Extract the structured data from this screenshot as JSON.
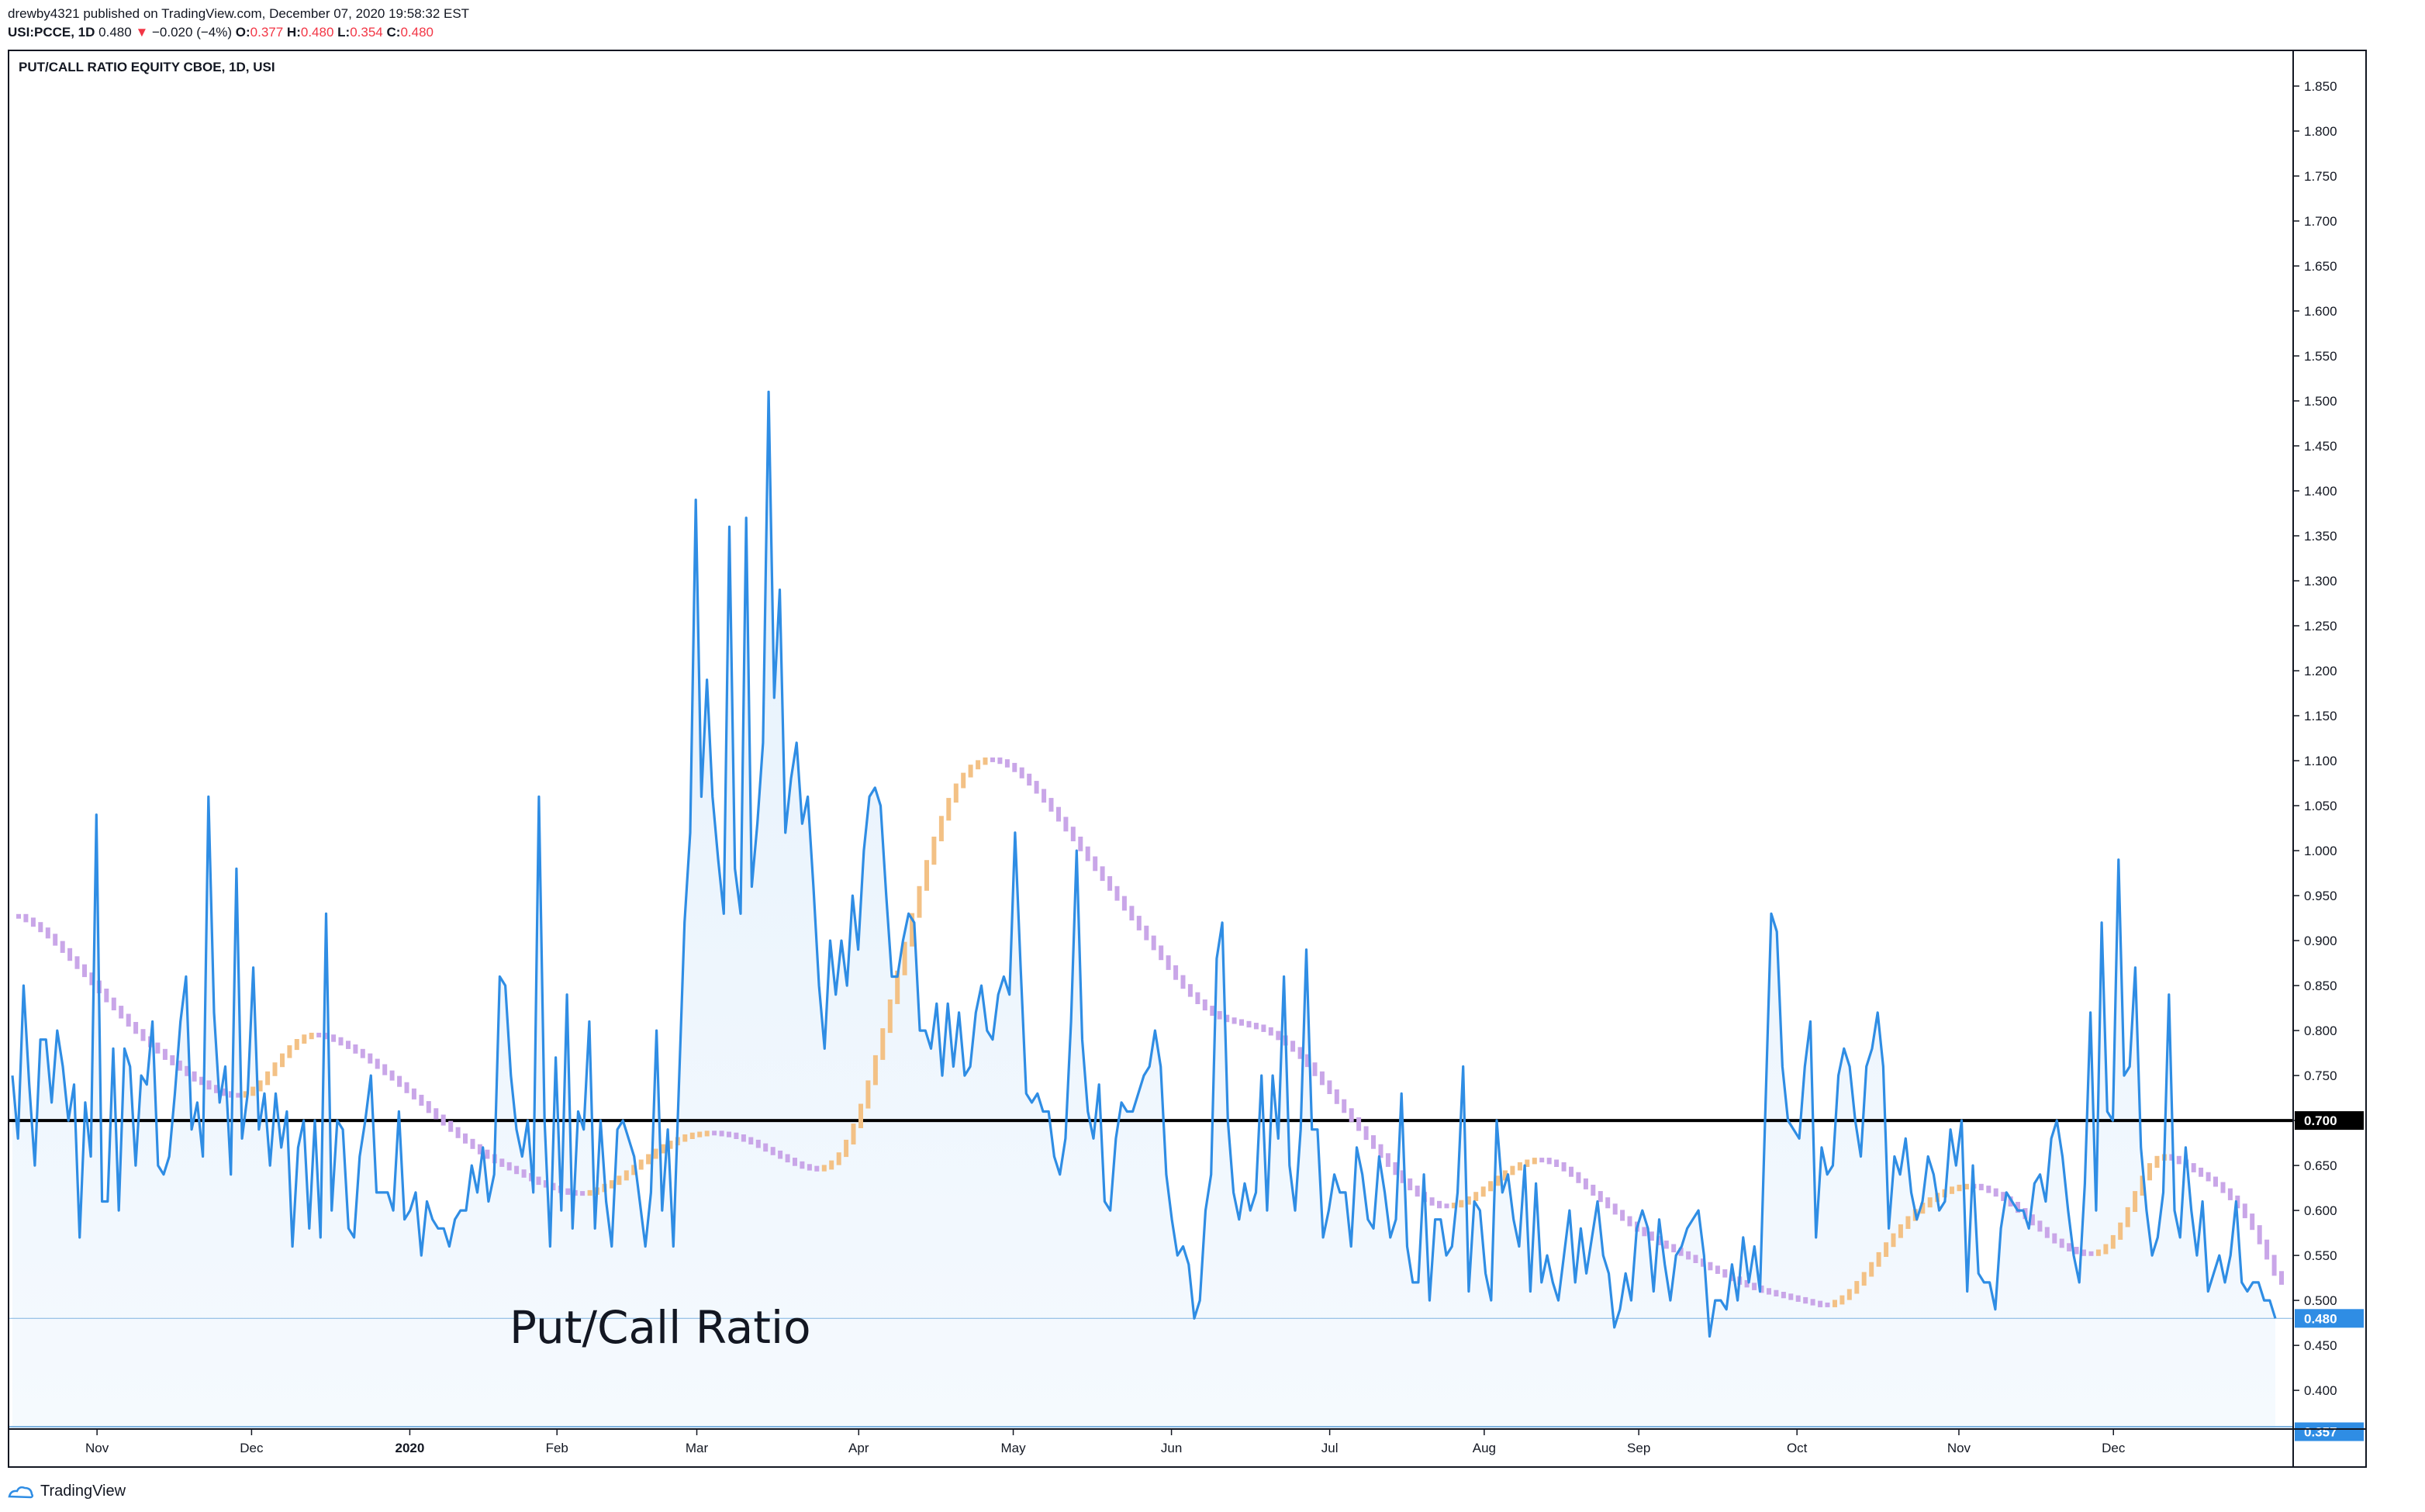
{
  "header": {
    "publisher_line": "drewby4321 published on TradingView.com, December 07, 2020 19:58:32 EST",
    "symbol": "USI:PCCE, 1D",
    "last": "0.480",
    "change_arrow": "▼",
    "change": "−0.020 (−4%)",
    "o_label": "O:",
    "o_value": "0.377",
    "h_label": "H:",
    "h_value": "0.480",
    "l_label": "L:",
    "l_value": "0.354",
    "c_label": "C:",
    "c_value": "0.480"
  },
  "pane": {
    "study_title": "PUT/CALL RATIO EQUITY CBOE, 1D, USI",
    "annotation": "Put/Call Ratio"
  },
  "footer": {
    "brand": "TradingView",
    "brand_icon": "tradingview-cloud-icon"
  },
  "colors": {
    "line": "#2f8de4",
    "area": "#e3f0fc",
    "ma_down": "#c9a6e8",
    "ma_up": "#f3c185",
    "hline": "#000000",
    "last_label_bg": "#2f8de4",
    "low_line": "#7fb3e0"
  },
  "chart_data": {
    "type": "line",
    "title": "PUT/CALL RATIO EQUITY CBOE, 1D, USI",
    "ylim": [
      0.357,
      1.875
    ],
    "y_ticks": [
      0.4,
      0.45,
      0.5,
      0.55,
      0.6,
      0.65,
      0.7,
      0.75,
      0.8,
      0.85,
      0.9,
      0.95,
      1.0,
      1.05,
      1.1,
      1.15,
      1.2,
      1.25,
      1.3,
      1.35,
      1.4,
      1.45,
      1.5,
      1.55,
      1.6,
      1.65,
      1.7,
      1.75,
      1.8,
      1.85
    ],
    "y_tick_labels": [
      "0.400",
      "0.450",
      "0.500",
      "0.550",
      "0.600",
      "0.650",
      "0.700",
      "0.750",
      "0.800",
      "0.850",
      "0.900",
      "0.950",
      "1.000",
      "1.050",
      "1.100",
      "1.150",
      "1.200",
      "1.250",
      "1.300",
      "1.350",
      "1.400",
      "1.450",
      "1.500",
      "1.550",
      "1.600",
      "1.650",
      "1.700",
      "1.750",
      "1.800",
      "1.850"
    ],
    "x_ticks": [
      "Nov",
      "Dec",
      "2020",
      "Feb",
      "Mar",
      "Apr",
      "May",
      "Jun",
      "Jul",
      "Aug",
      "Sep",
      "Oct",
      "Nov",
      "Dec"
    ],
    "x_tick_positions": [
      23,
      65,
      108,
      148,
      186,
      230,
      272,
      315,
      358,
      400,
      442,
      485,
      529,
      571
    ],
    "x_range": [
      0,
      615
    ],
    "horizontal_line": {
      "value": 0.7,
      "label": "0.700"
    },
    "last_value_label": {
      "value": 0.48,
      "label": "0.480"
    },
    "low_marker": {
      "value": 0.357,
      "label": "0.357"
    },
    "grid": false,
    "legend": "none",
    "series": [
      {
        "values": [
          0.75,
          0.68,
          0.85,
          0.74,
          0.65,
          0.79,
          0.79,
          0.72,
          0.8,
          0.76,
          0.7,
          0.74,
          0.57,
          0.72,
          0.66,
          1.04,
          0.61,
          0.61,
          0.78,
          0.6,
          0.78,
          0.76,
          0.65,
          0.75,
          0.74,
          0.81,
          0.65,
          0.64,
          0.66,
          0.73,
          0.81,
          0.86,
          0.69,
          0.72,
          0.66,
          1.06,
          0.82,
          0.72,
          0.76,
          0.64,
          0.98,
          0.68,
          0.73,
          0.87,
          0.69,
          0.73,
          0.65,
          0.73,
          0.67,
          0.71,
          0.56,
          0.67,
          0.7,
          0.58,
          0.7,
          0.57,
          0.93,
          0.6,
          0.7,
          0.69,
          0.58,
          0.57,
          0.66,
          0.7,
          0.75,
          0.62,
          0.62,
          0.62,
          0.6,
          0.71,
          0.59,
          0.6,
          0.62,
          0.55,
          0.61,
          0.59,
          0.58,
          0.58,
          0.56,
          0.59,
          0.6,
          0.6,
          0.65,
          0.62,
          0.67,
          0.61,
          0.64,
          0.86,
          0.85,
          0.75,
          0.69,
          0.66,
          0.7,
          0.62,
          1.06,
          0.7,
          0.56,
          0.77,
          0.6,
          0.84,
          0.58,
          0.71,
          0.69,
          0.81,
          0.58,
          0.7,
          0.61,
          0.56,
          0.69,
          0.7,
          0.68,
          0.66,
          0.61,
          0.56,
          0.62,
          0.8,
          0.6,
          0.69,
          0.56,
          0.74,
          0.92,
          1.02,
          1.39,
          1.06,
          1.19,
          1.06,
          0.99,
          0.93,
          1.36,
          0.98,
          0.93,
          1.37,
          0.96,
          1.03,
          1.12,
          1.51,
          1.17,
          1.29,
          1.02,
          1.08,
          1.12,
          1.03,
          1.06,
          0.96,
          0.85,
          0.78,
          0.9,
          0.84,
          0.9,
          0.85,
          0.95,
          0.89,
          1.0,
          1.06,
          1.07,
          1.05,
          0.95,
          0.86,
          0.86,
          0.9,
          0.93,
          0.92,
          0.8,
          0.8,
          0.78,
          0.83,
          0.75,
          0.83,
          0.76,
          0.82,
          0.75,
          0.76,
          0.82,
          0.85,
          0.8,
          0.79,
          0.84,
          0.86,
          0.84,
          1.02,
          0.87,
          0.73,
          0.72,
          0.73,
          0.71,
          0.71,
          0.66,
          0.64,
          0.68,
          0.81,
          1.0,
          0.79,
          0.71,
          0.68,
          0.74,
          0.61,
          0.6,
          0.68,
          0.72,
          0.71,
          0.71,
          0.73,
          0.75,
          0.76,
          0.8,
          0.76,
          0.64,
          0.59,
          0.55,
          0.56,
          0.54,
          0.48,
          0.5,
          0.6,
          0.64,
          0.88,
          0.92,
          0.7,
          0.62,
          0.59,
          0.63,
          0.6,
          0.62,
          0.75,
          0.6,
          0.75,
          0.68,
          0.86,
          0.65,
          0.6,
          0.69,
          0.89,
          0.69,
          0.69,
          0.57,
          0.6,
          0.64,
          0.62,
          0.62,
          0.56,
          0.67,
          0.64,
          0.59,
          0.58,
          0.66,
          0.62,
          0.57,
          0.59,
          0.73,
          0.56,
          0.52,
          0.52,
          0.64,
          0.5,
          0.59,
          0.59,
          0.55,
          0.56,
          0.62,
          0.76,
          0.51,
          0.61,
          0.6,
          0.53,
          0.5,
          0.7,
          0.62,
          0.64,
          0.59,
          0.56,
          0.65,
          0.51,
          0.63,
          0.52,
          0.55,
          0.52,
          0.5,
          0.55,
          0.6,
          0.52,
          0.58,
          0.53,
          0.57,
          0.61,
          0.55,
          0.53,
          0.47,
          0.49,
          0.53,
          0.5,
          0.58,
          0.6,
          0.58,
          0.51,
          0.59,
          0.54,
          0.5,
          0.55,
          0.56,
          0.58,
          0.59,
          0.6,
          0.55,
          0.46,
          0.5,
          0.5,
          0.49,
          0.54,
          0.5,
          0.57,
          0.52,
          0.56,
          0.51,
          0.72,
          0.93,
          0.91,
          0.76,
          0.7,
          0.69,
          0.68,
          0.76,
          0.81,
          0.57,
          0.67,
          0.64,
          0.65,
          0.75,
          0.78,
          0.76,
          0.7,
          0.66,
          0.76,
          0.78,
          0.82,
          0.76,
          0.58,
          0.66,
          0.64,
          0.68,
          0.62,
          0.59,
          0.61,
          0.66,
          0.64,
          0.6,
          0.61,
          0.69,
          0.65,
          0.7,
          0.51,
          0.65,
          0.53,
          0.52,
          0.52,
          0.49,
          0.58,
          0.62,
          0.61,
          0.6,
          0.6,
          0.58,
          0.63,
          0.64,
          0.61,
          0.68,
          0.7,
          0.66,
          0.6,
          0.55,
          0.52,
          0.63,
          0.82,
          0.6,
          0.92,
          0.71,
          0.7,
          0.99,
          0.75,
          0.76,
          0.87,
          0.67,
          0.6,
          0.55,
          0.57,
          0.62,
          0.84,
          0.6,
          0.57,
          0.67,
          0.6,
          0.55,
          0.61,
          0.51,
          0.53,
          0.55,
          0.52,
          0.55,
          0.61,
          0.52,
          0.51,
          0.52,
          0.52,
          0.5,
          0.5,
          0.48
        ]
      },
      {
        "values": [
          0.927,
          0.923,
          0.918,
          0.912,
          0.905,
          0.897,
          0.889,
          0.88,
          0.871,
          0.862,
          0.853,
          0.844,
          0.834,
          0.825,
          0.816,
          0.807,
          0.799,
          0.791,
          0.784,
          0.777,
          0.77,
          0.764,
          0.758,
          0.752,
          0.746,
          0.742,
          0.737,
          0.733,
          0.73,
          0.728,
          0.728,
          0.73,
          0.735,
          0.742,
          0.752,
          0.762,
          0.772,
          0.781,
          0.788,
          0.793,
          0.795,
          0.795,
          0.793,
          0.79,
          0.786,
          0.782,
          0.777,
          0.772,
          0.766,
          0.76,
          0.753,
          0.747,
          0.74,
          0.733,
          0.726,
          0.719,
          0.711,
          0.704,
          0.697,
          0.69,
          0.683,
          0.677,
          0.671,
          0.665,
          0.66,
          0.655,
          0.651,
          0.647,
          0.643,
          0.639,
          0.635,
          0.631,
          0.628,
          0.625,
          0.622,
          0.62,
          0.619,
          0.619,
          0.62,
          0.623,
          0.627,
          0.631,
          0.636,
          0.642,
          0.648,
          0.654,
          0.66,
          0.666,
          0.671,
          0.675,
          0.679,
          0.682,
          0.684,
          0.685,
          0.686,
          0.686,
          0.685,
          0.684,
          0.682,
          0.679,
          0.676,
          0.672,
          0.668,
          0.664,
          0.66,
          0.656,
          0.652,
          0.649,
          0.647,
          0.646,
          0.648,
          0.653,
          0.662,
          0.676,
          0.694,
          0.716,
          0.742,
          0.77,
          0.8,
          0.832,
          0.864,
          0.896,
          0.928,
          0.958,
          0.987,
          1.013,
          1.036,
          1.056,
          1.072,
          1.084,
          1.093,
          1.098,
          1.101,
          1.101,
          1.099,
          1.095,
          1.09,
          1.083,
          1.075,
          1.066,
          1.056,
          1.046,
          1.035,
          1.024,
          1.013,
          1.002,
          0.991,
          0.98,
          0.969,
          0.958,
          0.947,
          0.936,
          0.925,
          0.914,
          0.903,
          0.892,
          0.881,
          0.87,
          0.859,
          0.849,
          0.84,
          0.832,
          0.825,
          0.819,
          0.815,
          0.812,
          0.81,
          0.808,
          0.806,
          0.804,
          0.801,
          0.797,
          0.792,
          0.786,
          0.779,
          0.771,
          0.762,
          0.752,
          0.742,
          0.732,
          0.721,
          0.711,
          0.701,
          0.691,
          0.681,
          0.671,
          0.661,
          0.651,
          0.642,
          0.633,
          0.625,
          0.618,
          0.612,
          0.608,
          0.605,
          0.605,
          0.606,
          0.609,
          0.613,
          0.618,
          0.624,
          0.63,
          0.636,
          0.642,
          0.647,
          0.651,
          0.654,
          0.656,
          0.656,
          0.654,
          0.651,
          0.646,
          0.64,
          0.633,
          0.626,
          0.619,
          0.612,
          0.605,
          0.598,
          0.591,
          0.585,
          0.579,
          0.574,
          0.569,
          0.564,
          0.56,
          0.556,
          0.552,
          0.548,
          0.544,
          0.54,
          0.536,
          0.532,
          0.528,
          0.524,
          0.52,
          0.517,
          0.514,
          0.511,
          0.509,
          0.507,
          0.505,
          0.503,
          0.501,
          0.499,
          0.497,
          0.495,
          0.495,
          0.498,
          0.503,
          0.51,
          0.519,
          0.529,
          0.54,
          0.551,
          0.562,
          0.572,
          0.582,
          0.591,
          0.599,
          0.606,
          0.612,
          0.617,
          0.621,
          0.624,
          0.626,
          0.627,
          0.627,
          0.625,
          0.622,
          0.618,
          0.613,
          0.607,
          0.6,
          0.593,
          0.586,
          0.579,
          0.572,
          0.566,
          0.561,
          0.557,
          0.554,
          0.552,
          0.552,
          0.554,
          0.56,
          0.57,
          0.584,
          0.601,
          0.619,
          0.636,
          0.65,
          0.658,
          0.66,
          0.658,
          0.654,
          0.65,
          0.645,
          0.64,
          0.635,
          0.629,
          0.622,
          0.614,
          0.605,
          0.594,
          0.581,
          0.565,
          0.548,
          0.53,
          0.52
        ]
      }
    ]
  }
}
